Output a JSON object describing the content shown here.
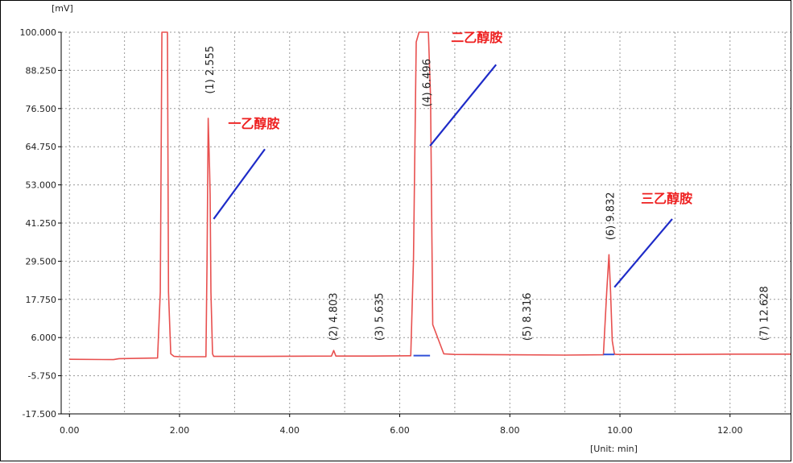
{
  "chart_data": {
    "type": "line",
    "y_unit_label": "[mV]",
    "x_unit_label": "[Unit: min]",
    "xlim": [
      -0.15,
      13.1
    ],
    "ylim": [
      -17.5,
      100.0
    ],
    "x_ticks": [
      0.0,
      2.0,
      4.0,
      6.0,
      8.0,
      10.0,
      12.0
    ],
    "x_tick_labels": [
      "0.00",
      "2.00",
      "4.00",
      "6.00",
      "8.00",
      "10.00",
      "12.00"
    ],
    "y_ticks": [
      100.0,
      88.25,
      76.5,
      64.75,
      53.0,
      41.25,
      29.5,
      17.75,
      6.0,
      -5.75,
      -17.5
    ],
    "y_tick_labels": [
      "100.000",
      "88.250",
      "76.500",
      "64.750",
      "53.000",
      "41.250",
      "29.500",
      "17.750",
      "6.000",
      "-5.750",
      "-17.500"
    ],
    "grid": true,
    "colors": {
      "signal": "#e8504f",
      "baseline_marks": "#3050d8",
      "annotation_text": "#ee2020",
      "annotation_line": "#1e2bc8",
      "grid": "#9a9a9a"
    },
    "series": [
      {
        "x": [
          0.0,
          0.8,
          0.9,
          1.6,
          1.65,
          1.68,
          1.72,
          1.78,
          1.8,
          1.84,
          1.9,
          2.0,
          2.48,
          2.5,
          2.52,
          2.545,
          2.555,
          2.57,
          2.6,
          2.62,
          3.5,
          4.76,
          4.8,
          4.84,
          5.5,
          6.2,
          6.25,
          6.3,
          6.35,
          6.48,
          6.52,
          6.56,
          6.6,
          6.8,
          7.0,
          8.0,
          9.0,
          9.7,
          9.76,
          9.8,
          9.83,
          9.86,
          9.9,
          9.95,
          11.0,
          12.0,
          13.1
        ],
        "y": [
          -0.7,
          -0.8,
          -0.5,
          -0.3,
          20.0,
          100.0,
          100.0,
          100.0,
          20.0,
          1.0,
          0.2,
          0.1,
          0.1,
          30.0,
          73.5,
          58.0,
          50.0,
          20.0,
          1.0,
          0.2,
          0.2,
          0.3,
          2.0,
          0.3,
          0.3,
          0.4,
          30.0,
          97.0,
          100.0,
          100.0,
          100.0,
          80.0,
          10.0,
          1.0,
          0.8,
          0.7,
          0.6,
          0.7,
          20.0,
          31.5,
          20.0,
          5.0,
          0.9,
          0.8,
          0.8,
          0.9,
          0.9
        ]
      }
    ],
    "peak_labels": [
      {
        "x": 2.555,
        "y": 81.0,
        "text": "(1) 2.555"
      },
      {
        "x": 4.803,
        "y": 5.0,
        "text": "(2) 4.803"
      },
      {
        "x": 5.635,
        "y": 5.0,
        "text": "(3) 5.635"
      },
      {
        "x": 6.496,
        "y": 77.0,
        "text": "(4) 6.496"
      },
      {
        "x": 8.316,
        "y": 5.0,
        "text": "(5) 8.316"
      },
      {
        "x": 9.832,
        "y": 36.0,
        "text": "(6) 9.832"
      },
      {
        "x": 12.628,
        "y": 5.0,
        "text": "(7) 12.628"
      }
    ],
    "annotations": [
      {
        "text": "一乙醇胺",
        "text_x": 3.35,
        "text_y": 70.5,
        "line_from": [
          2.62,
          42.5
        ],
        "line_to": [
          3.55,
          64.0
        ]
      },
      {
        "text": "二乙醇胺",
        "text_x": 7.4,
        "text_y": 97.0,
        "line_from": [
          6.55,
          65.0
        ],
        "line_to": [
          7.75,
          90.0
        ]
      },
      {
        "text": "三乙醇胺",
        "text_x": 10.85,
        "text_y": 47.5,
        "line_from": [
          9.9,
          21.5
        ],
        "line_to": [
          10.95,
          42.5
        ]
      }
    ],
    "baseline_marks": [
      {
        "x1": 6.25,
        "x2": 6.55,
        "y": 0.45
      },
      {
        "x1": 9.7,
        "x2": 9.9,
        "y": 0.8
      }
    ]
  }
}
